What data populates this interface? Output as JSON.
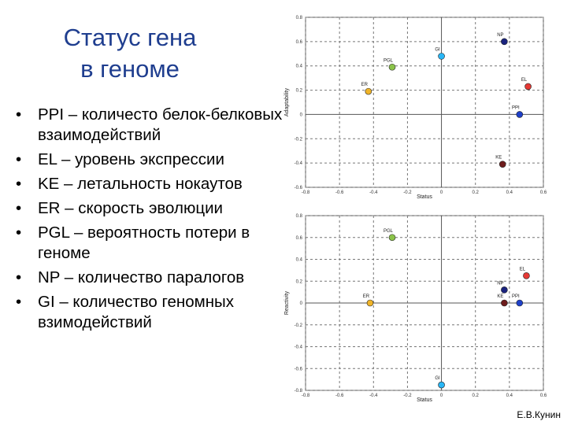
{
  "title_line1": "Статус гена",
  "title_line2": "в геноме",
  "bullets": [
    "PPI – количесто белок-белковых взаимодействий",
    "EL – уровень экспрессии",
    "KE – летальность нокаутов",
    "ER – скорость эволюции",
    "PGL – вероятность потери в геноме",
    "NP – количество паралогов",
    "GI – количество геномных взимодействий"
  ],
  "credit": "Е.В.Кунин",
  "colors": {
    "title": "#1f3e8f",
    "grid": "#777777"
  },
  "chart_data": [
    {
      "type": "scatter",
      "xlabel": "Status",
      "ylabel": "Adaptability",
      "xlim": [
        -0.8,
        0.6
      ],
      "ylim": [
        -0.6,
        0.8
      ],
      "xticks": [
        "-0.8",
        "-0.6",
        "-0.4",
        "-0.2",
        "0",
        "0.2",
        "0.4",
        "0.6"
      ],
      "yticks": [
        "-0.6",
        "-0.4",
        "-0.2",
        "0",
        "0.2",
        "0.4",
        "0.6",
        "0.8"
      ],
      "grid": true,
      "points": [
        {
          "label": "NP",
          "x": 0.37,
          "y": 0.6,
          "color": "#1a237e"
        },
        {
          "label": "GI",
          "x": 0.0,
          "y": 0.48,
          "color": "#29b6f6"
        },
        {
          "label": "PGL",
          "x": -0.29,
          "y": 0.39,
          "color": "#8bc34a"
        },
        {
          "label": "ER",
          "x": -0.43,
          "y": 0.19,
          "color": "#f0b428"
        },
        {
          "label": "EL",
          "x": 0.51,
          "y": 0.23,
          "color": "#e53935"
        },
        {
          "label": "PPI",
          "x": 0.46,
          "y": 0.0,
          "color": "#1e40c8"
        },
        {
          "label": "KE",
          "x": 0.36,
          "y": -0.41,
          "color": "#6d1b1b"
        }
      ]
    },
    {
      "type": "scatter",
      "xlabel": "Status",
      "ylabel": "Reactivity",
      "xlim": [
        -0.8,
        0.6
      ],
      "ylim": [
        -0.8,
        0.8
      ],
      "xticks": [
        "-0.8",
        "-0.6",
        "-0.4",
        "-0.2",
        "0",
        "0.2",
        "0.4",
        "0.6"
      ],
      "yticks": [
        "-0.8",
        "-0.6",
        "-0.4",
        "-0.2",
        "0",
        "0.2",
        "0.4",
        "0.6",
        "0.8"
      ],
      "grid": true,
      "points": [
        {
          "label": "PGL",
          "x": -0.29,
          "y": 0.6,
          "color": "#8bc34a"
        },
        {
          "label": "EL",
          "x": 0.5,
          "y": 0.25,
          "color": "#e53935"
        },
        {
          "label": "NP",
          "x": 0.37,
          "y": 0.12,
          "color": "#1a237e"
        },
        {
          "label": "ER",
          "x": -0.42,
          "y": 0.0,
          "color": "#f0b428"
        },
        {
          "label": "PPI",
          "x": 0.46,
          "y": 0.0,
          "color": "#1e40c8"
        },
        {
          "label": "KE",
          "x": 0.37,
          "y": 0.0,
          "color": "#6d1b1b"
        },
        {
          "label": "GI",
          "x": 0.0,
          "y": -0.75,
          "color": "#29b6f6"
        }
      ]
    }
  ]
}
